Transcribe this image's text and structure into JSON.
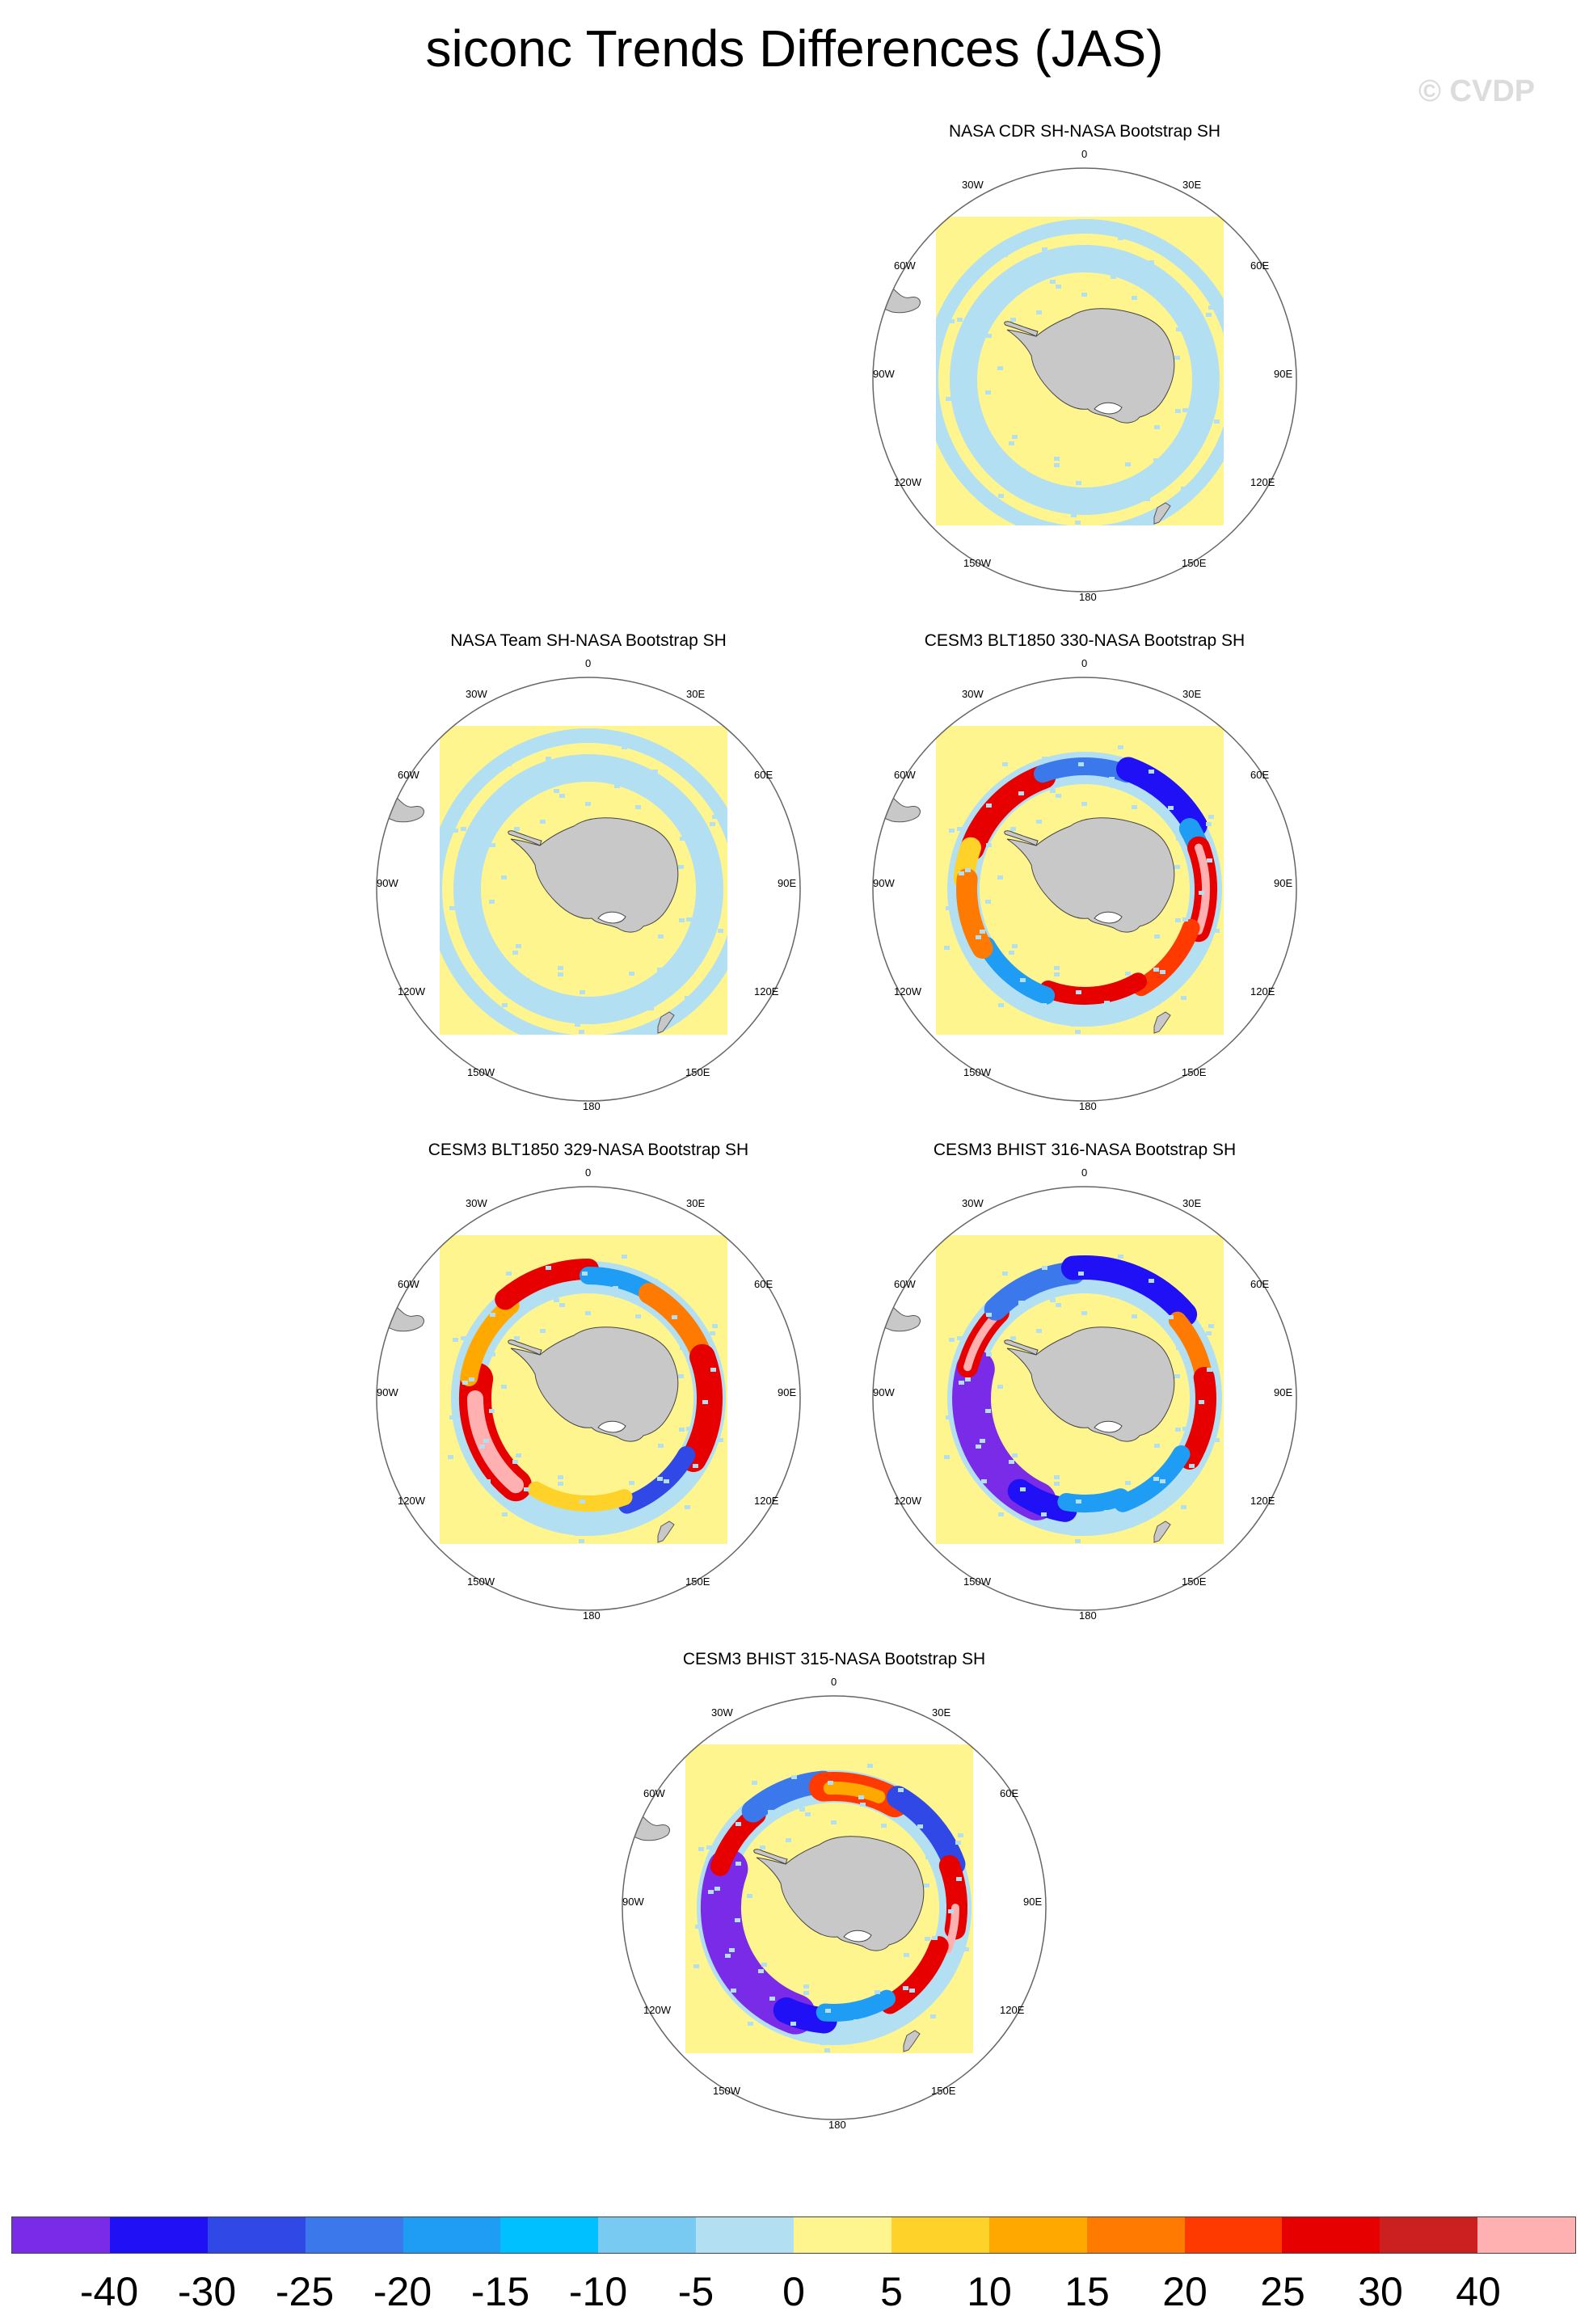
{
  "title": "siconc Trends Differences (JAS)",
  "watermark": "© CVDP",
  "panels": [
    {
      "title": "NASA CDR SH-NASA Bootstrap SH",
      "pattern": "weak"
    },
    {
      "title": "NASA Team SH-NASA Bootstrap SH",
      "pattern": "weak"
    },
    {
      "title": "CESM3 BLT1850 330-NASA Bootstrap SH",
      "pattern": "ring_a"
    },
    {
      "title": "CESM3 BLT1850 329-NASA Bootstrap SH",
      "pattern": "ring_b"
    },
    {
      "title": "CESM3 BHIST 316-NASA Bootstrap SH",
      "pattern": "ring_c"
    },
    {
      "title": "CESM3 BHIST 315-NASA Bootstrap SH",
      "pattern": "ring_d"
    }
  ],
  "map_labels": {
    "lon0": "0",
    "e30": "30E",
    "e60": "60E",
    "e90": "90E",
    "e120": "120E",
    "e150": "150E",
    "lon180": "180",
    "w150": "150W",
    "w120": "120W",
    "w90": "90W",
    "w60": "60W",
    "w30": "30W"
  },
  "colorbar": {
    "colors": [
      "#7a2be8",
      "#2010f5",
      "#2f48e6",
      "#3a78ec",
      "#1f9df5",
      "#00c0ff",
      "#78caf2",
      "#b3dff2",
      "#fff58f",
      "#ffd22a",
      "#ffa800",
      "#ff7a00",
      "#ff3a00",
      "#e60000",
      "#cc2020",
      "#ffb0b0"
    ],
    "labels": [
      "-40",
      "-30",
      "-25",
      "-20",
      "-15",
      "-10",
      "-5",
      "0",
      "5",
      "10",
      "15",
      "20",
      "25",
      "30",
      "40"
    ]
  }
}
